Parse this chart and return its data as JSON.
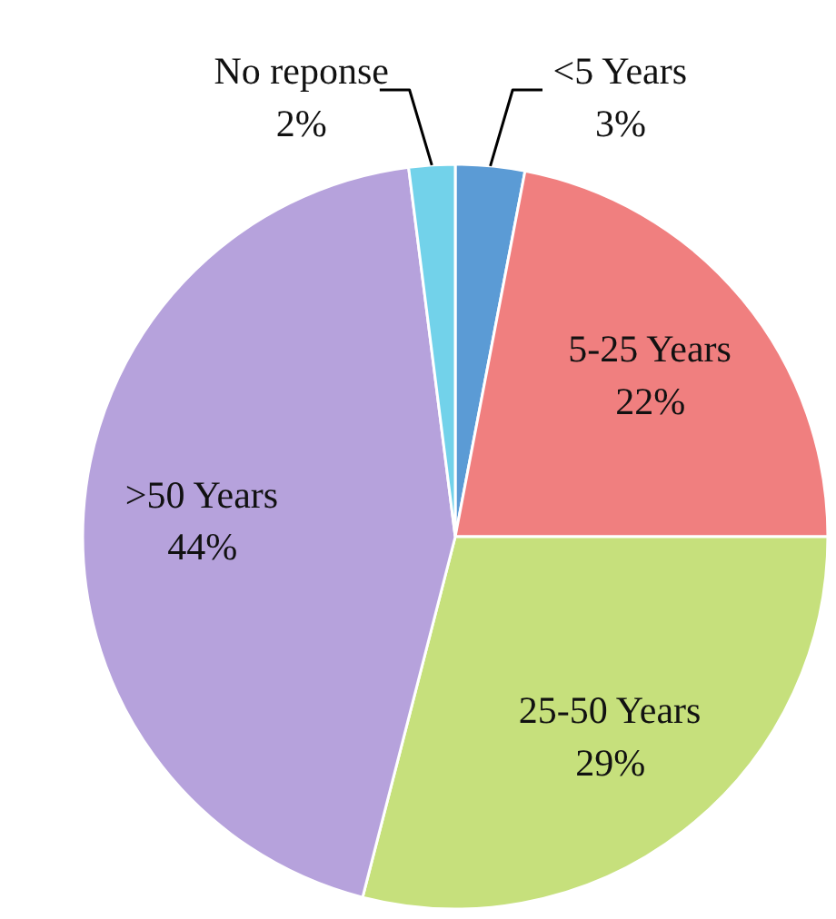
{
  "chart_data": {
    "type": "pie",
    "categories": [
      "<5 Years",
      "5-25 Years",
      "25-50 Years",
      ">50 Years",
      "No reponse"
    ],
    "values": [
      3,
      22,
      29,
      44,
      2
    ],
    "colors": [
      "#5b9bd5",
      "#f07f7f",
      "#c6e07c",
      "#b6a2dc",
      "#72d2ea"
    ],
    "value_labels": [
      "3%",
      "22%",
      "29%",
      "44%",
      "2%"
    ]
  }
}
